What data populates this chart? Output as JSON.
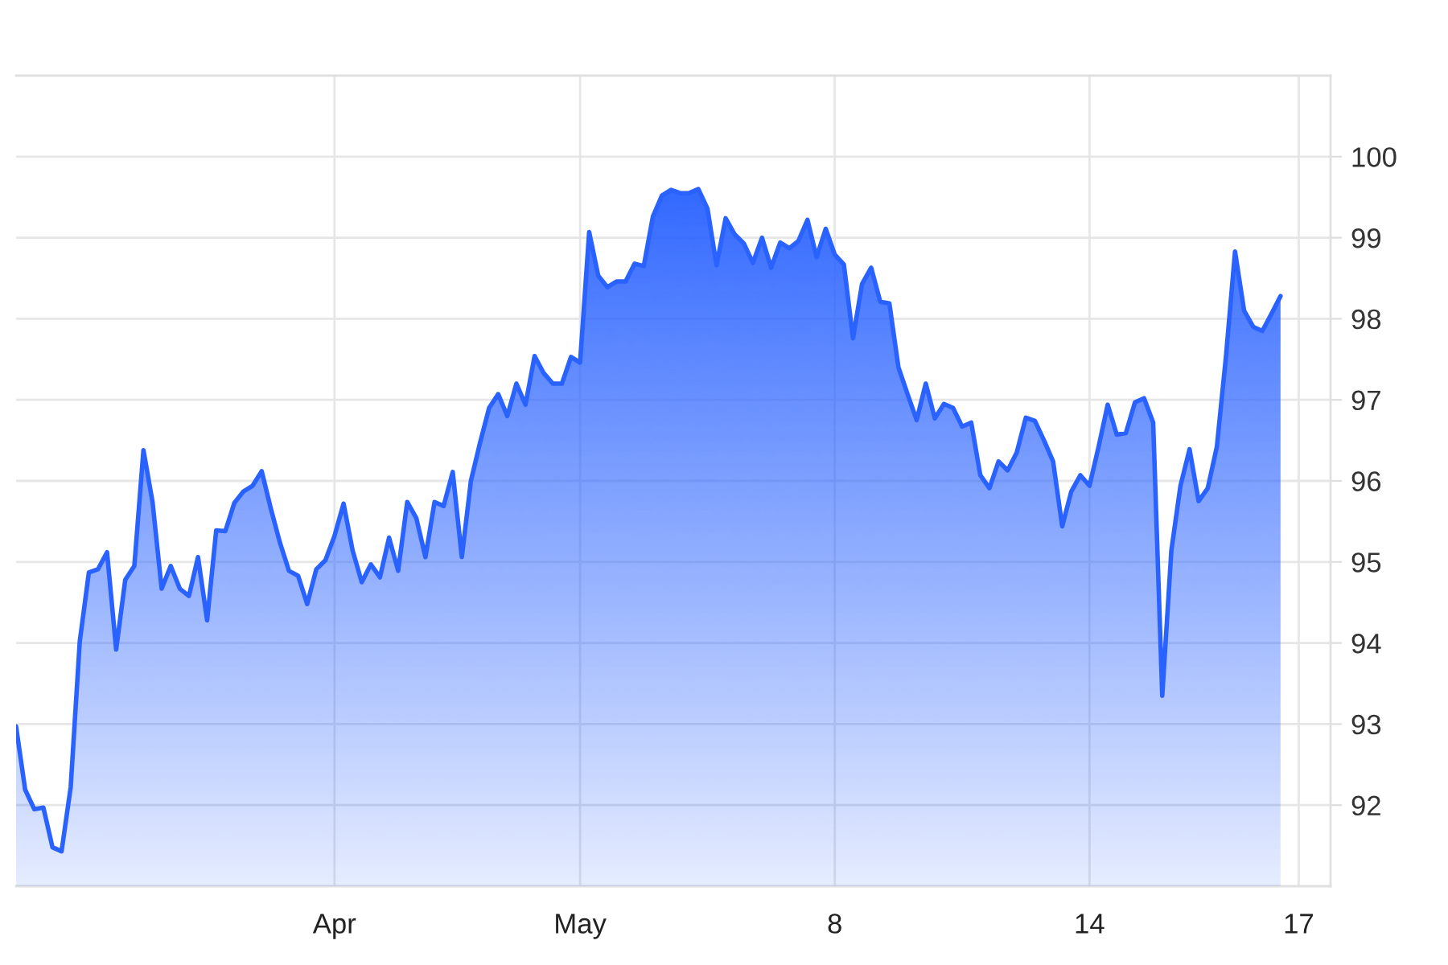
{
  "chart_data": {
    "type": "area",
    "color": "#2962ff",
    "categories": [
      null,
      null,
      null,
      null,
      null,
      null,
      null,
      null,
      null,
      null,
      null,
      null,
      null,
      null,
      null,
      null,
      null,
      null,
      null,
      null,
      null,
      null,
      null,
      null,
      null,
      null,
      null,
      null,
      null,
      null,
      null,
      null,
      null,
      null,
      null,
      "Apr",
      null,
      null,
      null,
      null,
      null,
      null,
      null,
      null,
      null,
      null,
      null,
      null,
      null,
      null,
      null,
      null,
      null,
      null,
      null,
      null,
      null,
      null,
      null,
      null,
      null,
      null,
      "May",
      null,
      null,
      null,
      null,
      null,
      null,
      null,
      null,
      null,
      null,
      null,
      null,
      null,
      null,
      null,
      null,
      null,
      null,
      null,
      null,
      null,
      null,
      null,
      null,
      null,
      null,
      null,
      "8",
      null,
      null,
      null,
      null,
      null,
      null,
      null,
      null,
      null,
      null,
      null,
      null,
      null,
      null,
      null,
      null,
      null,
      null,
      null,
      null,
      null,
      null,
      null,
      null,
      null,
      null,
      null,
      "14",
      null,
      null,
      null,
      null,
      null,
      null,
      null,
      null,
      null,
      null,
      null,
      null,
      null,
      null,
      null,
      null,
      null,
      null,
      null,
      null,
      null,
      null,
      "17",
      null,
      null,
      null
    ],
    "values": [
      92.97,
      92.19,
      91.95,
      91.97,
      91.48,
      91.43,
      92.22,
      94.02,
      94.87,
      94.91,
      95.12,
      93.92,
      94.78,
      94.95,
      96.38,
      95.74,
      94.67,
      94.95,
      94.67,
      94.58,
      95.06,
      94.28,
      95.39,
      95.38,
      95.73,
      95.87,
      95.94,
      96.12,
      95.66,
      95.24,
      94.89,
      94.83,
      94.48,
      94.91,
      95.02,
      95.32,
      95.72,
      95.14,
      94.75,
      94.97,
      94.81,
      95.3,
      94.89,
      95.74,
      95.54,
      95.06,
      95.74,
      95.69,
      96.11,
      95.06,
      96.0,
      96.47,
      96.9,
      97.07,
      96.8,
      97.2,
      96.94,
      97.54,
      97.33,
      97.2,
      97.2,
      97.53,
      97.46,
      99.07,
      98.53,
      98.39,
      98.46,
      98.46,
      98.68,
      98.65,
      99.26,
      99.52,
      99.59,
      99.55,
      99.55,
      99.6,
      99.36,
      98.66,
      99.24,
      99.04,
      98.93,
      98.69,
      99.0,
      98.63,
      98.94,
      98.87,
      98.96,
      99.22,
      98.76,
      99.11,
      98.79,
      98.67,
      97.76,
      98.43,
      98.63,
      98.21,
      98.19,
      97.4,
      97.07,
      96.75,
      97.2,
      96.77,
      96.95,
      96.9,
      96.67,
      96.72,
      96.07,
      95.91,
      96.24,
      96.13,
      96.35,
      96.78,
      96.74,
      96.5,
      96.24,
      95.44,
      95.87,
      96.07,
      95.94,
      96.42,
      96.94,
      96.57,
      96.59,
      96.97,
      97.02,
      96.72,
      93.35,
      95.14,
      95.94,
      96.39,
      95.75,
      95.91,
      96.42,
      97.53,
      98.83,
      98.1,
      97.9,
      97.85,
      98.06,
      98.28,
      null,
      null,
      null,
      null,
      null
    ],
    "ylim": [
      91,
      101
    ],
    "yticks": [
      92,
      93,
      94,
      95,
      96,
      97,
      98,
      99,
      100
    ],
    "grid": true
  }
}
